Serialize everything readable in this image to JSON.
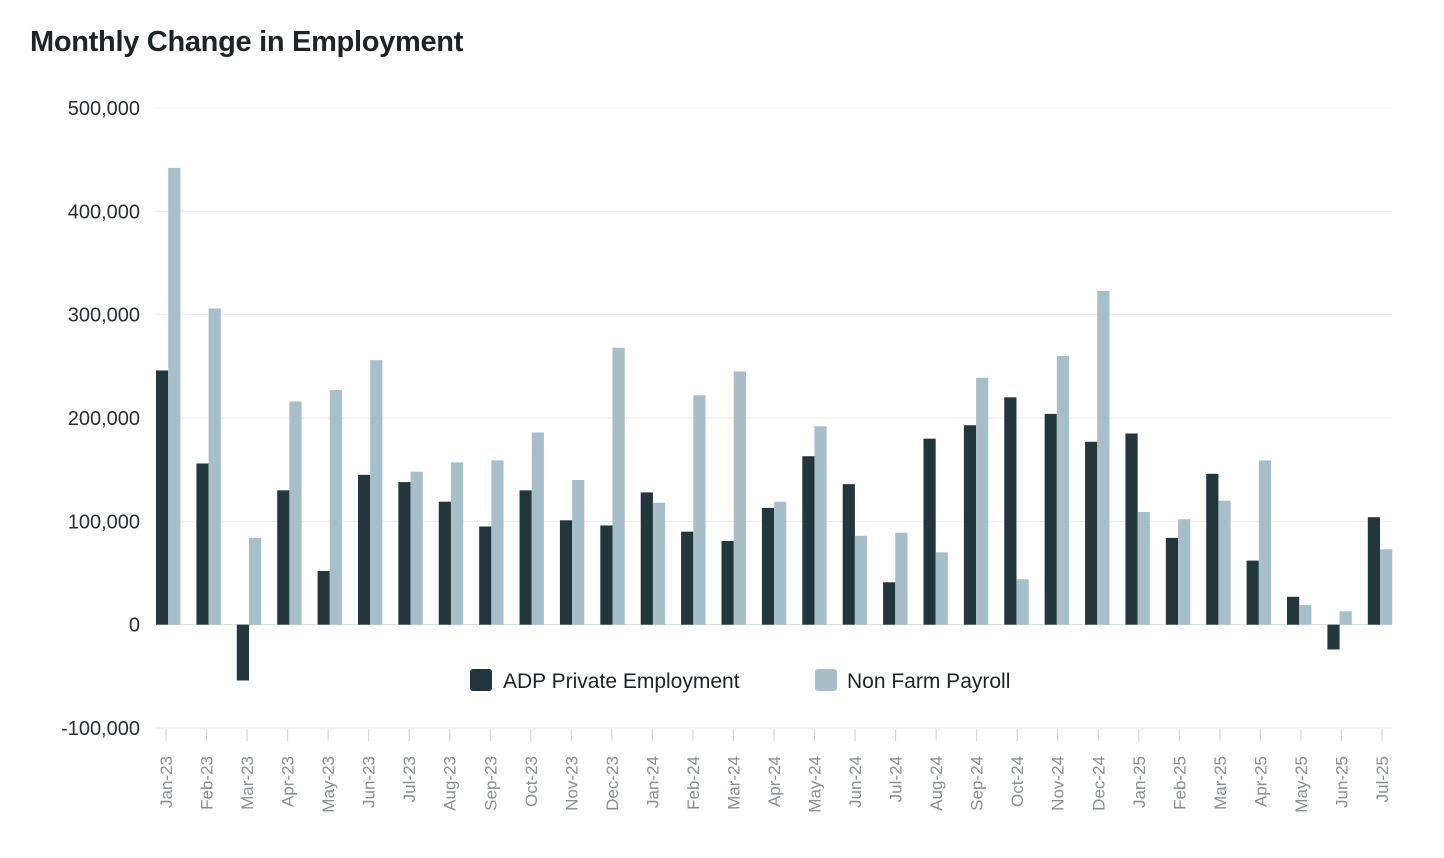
{
  "chart_data": {
    "type": "bar",
    "title": "Monthly Change in Employment",
    "xlabel": "",
    "ylabel": "",
    "ylim": [
      -100000,
      500000
    ],
    "yticks": [
      500000,
      400000,
      300000,
      200000,
      100000,
      0,
      -100000
    ],
    "ytick_labels": [
      "500,000",
      "400,000",
      "300,000",
      "200,000",
      "100,000",
      "0",
      "-100,000"
    ],
    "grid": true,
    "legend_position": "bottom-center",
    "categories": [
      "Jan-23",
      "Feb-23",
      "Mar-23",
      "Apr-23",
      "May-23",
      "Jun-23",
      "Jul-23",
      "Aug-23",
      "Sep-23",
      "Oct-23",
      "Nov-23",
      "Dec-23",
      "Jan-24",
      "Feb-24",
      "Mar-24",
      "Apr-24",
      "May-24",
      "Jun-24",
      "Jul-24",
      "Aug-24",
      "Sep-24",
      "Oct-24",
      "Nov-24",
      "Dec-24",
      "Jan-25",
      "Feb-25",
      "Mar-25",
      "Apr-25",
      "May-25",
      "Jun-25",
      "Jul-25"
    ],
    "series": [
      {
        "name": "ADP Private Employment",
        "color": "#22373d",
        "values": [
          246000,
          156000,
          -54000,
          130000,
          52000,
          145000,
          138000,
          119000,
          95000,
          130000,
          101000,
          96000,
          128000,
          90000,
          81000,
          113000,
          163000,
          136000,
          41000,
          180000,
          193000,
          220000,
          204000,
          177000,
          185000,
          84000,
          146000,
          62000,
          27000,
          -24000,
          104000
        ]
      },
      {
        "name": "Non Farm Payroll",
        "color": "#a7bfc8",
        "values": [
          442000,
          306000,
          84000,
          216000,
          227000,
          256000,
          148000,
          157000,
          159000,
          186000,
          140000,
          268000,
          118000,
          222000,
          245000,
          119000,
          192000,
          86000,
          89000,
          70000,
          239000,
          44000,
          260000,
          323000,
          109000,
          102000,
          120000,
          159000,
          19000,
          13000,
          73000
        ]
      }
    ]
  }
}
